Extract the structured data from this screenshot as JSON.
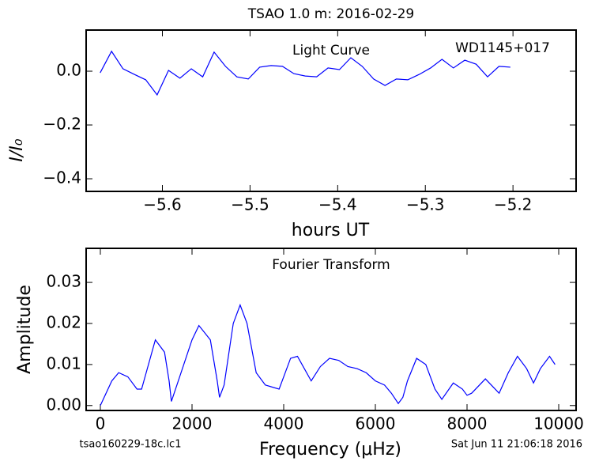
{
  "title": "TSAO 1.0 m:  2016-02-29",
  "footer_left": "tsao160229-18c.lc1",
  "footer_right": "Sat Jun 11 21:06:18 2016",
  "chart_data": [
    {
      "type": "line",
      "annotation_center": "Light Curve",
      "annotation_right": "WD1145+017",
      "xlabel": "hours UT",
      "ylabel": "I/I₀",
      "x": [
        -5.671,
        -5.658,
        -5.645,
        -5.632,
        -5.619,
        -5.606,
        -5.593,
        -5.58,
        -5.567,
        -5.554,
        -5.541,
        -5.528,
        -5.515,
        -5.502,
        -5.489,
        -5.476,
        -5.463,
        -5.45,
        -5.437,
        -5.424,
        -5.411,
        -5.398,
        -5.385,
        -5.372,
        -5.359,
        -5.346,
        -5.333,
        -5.32,
        -5.307,
        -5.294,
        -5.281,
        -5.268,
        -5.255,
        -5.242,
        -5.229,
        -5.216,
        -5.203
      ],
      "series": [
        {
          "color": "#0000ff",
          "values": [
            -0.006,
            0.074,
            0.009,
            -0.012,
            -0.032,
            -0.088,
            0.003,
            -0.026,
            0.009,
            -0.021,
            0.071,
            0.018,
            -0.021,
            -0.029,
            0.015,
            0.021,
            0.018,
            -0.009,
            -0.018,
            -0.021,
            0.012,
            0.006,
            0.05,
            0.018,
            -0.029,
            -0.053,
            -0.029,
            -0.032,
            -0.012,
            0.012,
            0.044,
            0.012,
            0.041,
            0.026,
            -0.021,
            0.018,
            0.015
          ]
        }
      ],
      "xlim": [
        -5.687,
        -5.128
      ],
      "xticks": [
        {
          "value": -5.6,
          "label": "−5.6"
        },
        {
          "value": -5.5,
          "label": "−5.5"
        },
        {
          "value": -5.4,
          "label": "−5.4"
        },
        {
          "value": -5.3,
          "label": "−5.3"
        },
        {
          "value": -5.2,
          "label": "−5.2"
        }
      ],
      "ylim": [
        -0.447,
        0.153
      ],
      "yticks": [
        {
          "value": 0,
          "label": "0.0"
        },
        {
          "value": -0.2,
          "label": "−0.2"
        },
        {
          "value": -0.4,
          "label": "−0.4"
        }
      ]
    },
    {
      "type": "line",
      "annotation_center": "Fourier Transform",
      "xlabel": "Frequency (μHz)",
      "ylabel": "Amplitude",
      "x": [
        0,
        250,
        400,
        600,
        800,
        900,
        1000,
        1200,
        1400,
        1500,
        1550,
        1700,
        2000,
        2150,
        2400,
        2550,
        2600,
        2700,
        2900,
        3050,
        3200,
        3400,
        3600,
        3900,
        4000,
        4150,
        4300,
        4450,
        4600,
        4800,
        5000,
        5200,
        5400,
        5600,
        5800,
        6000,
        6200,
        6350,
        6500,
        6600,
        6700,
        6900,
        7100,
        7300,
        7450,
        7700,
        7900,
        8000,
        8100,
        8400,
        8700,
        8900,
        9100,
        9300,
        9450,
        9600,
        9800,
        9920
      ],
      "series": [
        {
          "color": "#0000ff",
          "values": [
            0,
            0.006,
            0.008,
            0.007,
            0.004,
            0.004,
            0.008,
            0.016,
            0.013,
            0.006,
            0.001,
            0.006,
            0.016,
            0.0195,
            0.016,
            0.006,
            0.002,
            0.005,
            0.02,
            0.0245,
            0.02,
            0.008,
            0.005,
            0.004,
            0.007,
            0.0115,
            0.012,
            0.009,
            0.006,
            0.0095,
            0.0115,
            0.011,
            0.0095,
            0.009,
            0.008,
            0.006,
            0.005,
            0.003,
            0.0005,
            0.002,
            0.006,
            0.0115,
            0.01,
            0.004,
            0.0015,
            0.0055,
            0.004,
            0.0025,
            0.003,
            0.0065,
            0.003,
            0.008,
            0.012,
            0.009,
            0.0055,
            0.009,
            0.012,
            0.01
          ]
        }
      ],
      "xlim": [
        -310,
        10379
      ],
      "xticks": [
        0,
        2000,
        4000,
        6000,
        8000,
        10000
      ],
      "ylim": [
        -0.0012,
        0.0383
      ],
      "yticks": [
        {
          "value": 0,
          "label": "0.00"
        },
        {
          "value": 0.01,
          "label": "0.01"
        },
        {
          "value": 0.02,
          "label": "0.02"
        },
        {
          "value": 0.03,
          "label": "0.03"
        }
      ]
    }
  ]
}
